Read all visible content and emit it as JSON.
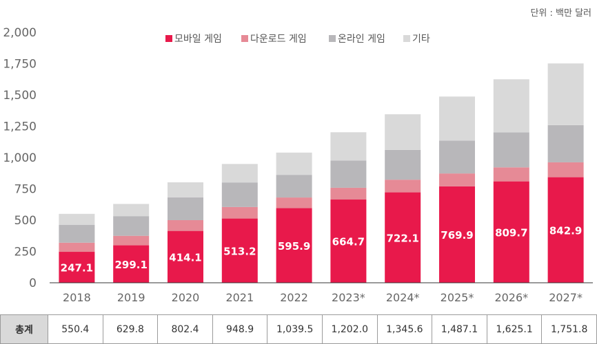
{
  "unit_label": "단위 : 백만 달러",
  "chart_data": {
    "type": "bar",
    "stacked": true,
    "title": "",
    "xlabel": "",
    "ylabel": "",
    "ylim": [
      0,
      2000
    ],
    "yticks": [
      0,
      250,
      500,
      750,
      1000,
      1250,
      1500,
      1750,
      2000
    ],
    "ytick_labels": [
      "0",
      "250",
      "500",
      "750",
      "1,000",
      "1,250",
      "1,500",
      "1,750",
      "2,000"
    ],
    "grid": false,
    "legend_position": "top-center",
    "categories": [
      "2018",
      "2019",
      "2020",
      "2021",
      "2022",
      "2023*",
      "2024*",
      "2025*",
      "2026*",
      "2027*"
    ],
    "series": [
      {
        "name": "모바일 게임",
        "color": "#e8194b",
        "values": [
          247.1,
          299.1,
          414.1,
          513.2,
          595.9,
          664.7,
          722.1,
          769.9,
          809.7,
          842.9
        ],
        "labels": [
          "247.1",
          "299.1",
          "414.1",
          "513.2",
          "595.9",
          "664.7",
          "722.1",
          "769.9",
          "809.7",
          "842.9"
        ]
      },
      {
        "name": "다운로드 게임",
        "color": "#e68a96",
        "values": [
          73,
          76,
          86,
          92,
          85,
          94,
          101,
          103,
          112,
          119
        ]
      },
      {
        "name": "온라인 게임",
        "color": "#b8b7ba",
        "values": [
          143,
          157,
          182,
          196,
          181,
          218,
          238,
          263,
          280,
          297
        ]
      },
      {
        "name": "기타",
        "color": "#d9d9d9",
        "values": [
          87.3,
          97.7,
          120.3,
          147.7,
          177.6,
          225.3,
          284.5,
          351.2,
          423.4,
          492.9
        ]
      }
    ],
    "totals_header": "총계",
    "totals": [
      "550.4",
      "629.8",
      "802.4",
      "948.9",
      "1,039.5",
      "1,202.0",
      "1,345.6",
      "1,487.1",
      "1,625.1",
      "1,751.8"
    ]
  }
}
